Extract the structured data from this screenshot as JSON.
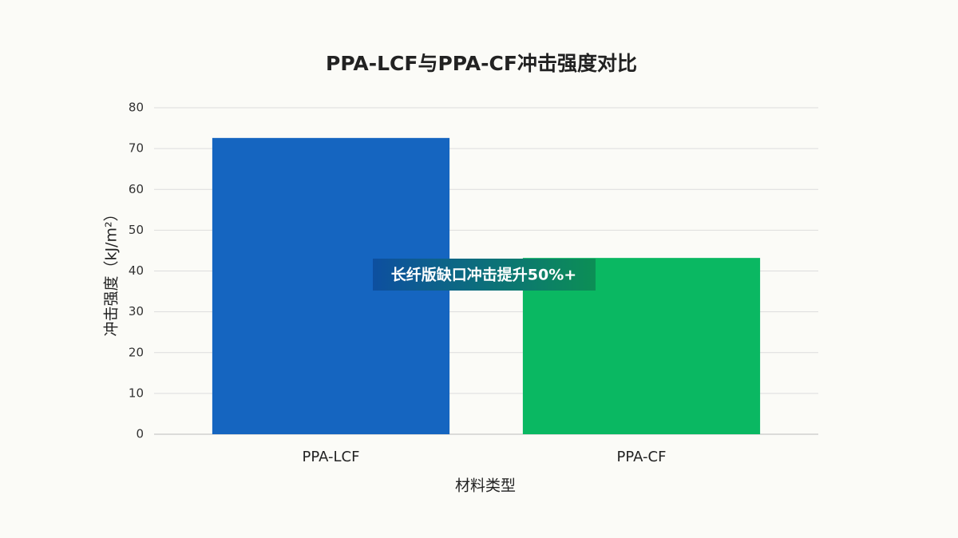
{
  "chart_data": {
    "type": "bar",
    "title": "PPA-LCF与PPA-CF冲击强度对比",
    "x_label": "材料类型",
    "y_label": "冲击强度（kJ/m²）",
    "categories": [
      "PPA-LCF",
      "PPA-CF"
    ],
    "values": [
      72.6,
      43.2
    ],
    "colors": [
      "#1565c0",
      "#0ab862"
    ],
    "annotation": "长纤版缺口冲击提升50%+",
    "ylim": [
      0,
      80
    ],
    "yticks": [
      0,
      10,
      20,
      30,
      40,
      50,
      60,
      70,
      80
    ],
    "grid": true
  }
}
